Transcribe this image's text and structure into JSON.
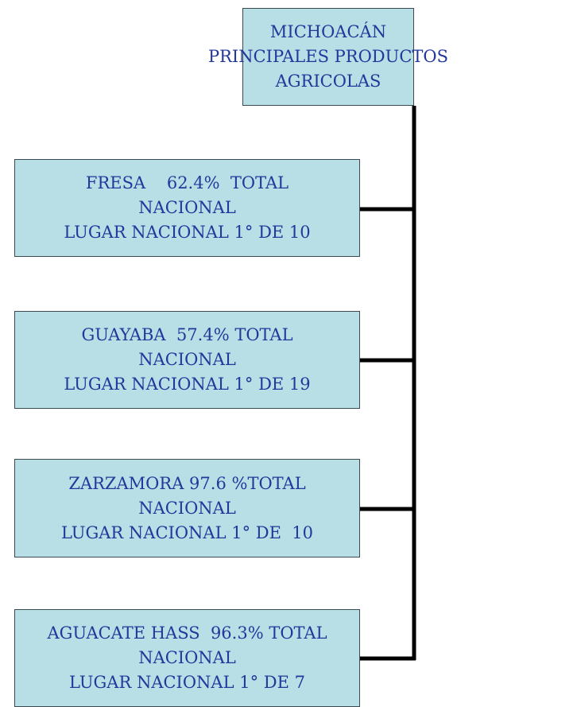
{
  "nodes": [
    {
      "lines": [
        "MICHOACÁN",
        "PRINCIPALES PRODUCTOS",
        "AGRICOLAS"
      ]
    },
    {
      "lines": [
        "FRESA    62.4%  TOTAL",
        "NACIONAL",
        "LUGAR NACIONAL 1° DE 10"
      ]
    },
    {
      "lines": [
        "GUAYABA  57.4% TOTAL",
        "NACIONAL",
        "LUGAR NACIONAL 1° DE 19"
      ]
    },
    {
      "lines": [
        "ZARZAMORA 97.6 %TOTAL",
        "NACIONAL",
        "LUGAR NACIONAL 1° DE  10"
      ]
    },
    {
      "lines": [
        "AGUACATE HASS  96.3% TOTAL",
        "NACIONAL",
        "LUGAR NACIONAL 1° DE 7"
      ]
    }
  ]
}
